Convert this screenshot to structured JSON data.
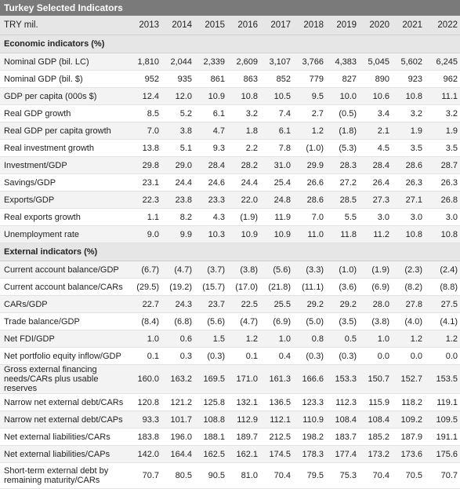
{
  "title": "Turkey Selected Indicators",
  "header": {
    "label": "TRY mil.",
    "years": [
      "2013",
      "2014",
      "2015",
      "2016",
      "2017",
      "2018",
      "2019",
      "2020",
      "2021",
      "2022"
    ]
  },
  "sections": [
    {
      "title": "Economic indicators (%)",
      "rows": [
        {
          "label": "Nominal GDP (bil. LC)",
          "values": [
            "1,810",
            "2,044",
            "2,339",
            "2,609",
            "3,107",
            "3,766",
            "4,383",
            "5,045",
            "5,602",
            "6,245"
          ]
        },
        {
          "label": "Nominal GDP (bil. $)",
          "values": [
            "952",
            "935",
            "861",
            "863",
            "852",
            "779",
            "827",
            "890",
            "923",
            "962"
          ]
        },
        {
          "label": "GDP per capita (000s $)",
          "values": [
            "12.4",
            "12.0",
            "10.9",
            "10.8",
            "10.5",
            "9.5",
            "10.0",
            "10.6",
            "10.8",
            "11.1"
          ]
        },
        {
          "label": "Real GDP growth",
          "values": [
            "8.5",
            "5.2",
            "6.1",
            "3.2",
            "7.4",
            "2.7",
            "(0.5)",
            "3.4",
            "3.2",
            "3.2"
          ]
        },
        {
          "label": "Real GDP per capita growth",
          "values": [
            "7.0",
            "3.8",
            "4.7",
            "1.8",
            "6.1",
            "1.2",
            "(1.8)",
            "2.1",
            "1.9",
            "1.9"
          ]
        },
        {
          "label": "Real investment growth",
          "values": [
            "13.8",
            "5.1",
            "9.3",
            "2.2",
            "7.8",
            "(1.0)",
            "(5.3)",
            "4.5",
            "3.5",
            "3.5"
          ]
        },
        {
          "label": "Investment/GDP",
          "values": [
            "29.8",
            "29.0",
            "28.4",
            "28.2",
            "31.0",
            "29.9",
            "28.3",
            "28.4",
            "28.6",
            "28.7"
          ]
        },
        {
          "label": "Savings/GDP",
          "values": [
            "23.1",
            "24.4",
            "24.6",
            "24.4",
            "25.4",
            "26.6",
            "27.2",
            "26.4",
            "26.3",
            "26.3"
          ]
        },
        {
          "label": "Exports/GDP",
          "values": [
            "22.3",
            "23.8",
            "23.3",
            "22.0",
            "24.8",
            "28.6",
            "28.5",
            "27.3",
            "27.1",
            "26.8"
          ]
        },
        {
          "label": "Real exports growth",
          "values": [
            "1.1",
            "8.2",
            "4.3",
            "(1.9)",
            "11.9",
            "7.0",
            "5.5",
            "3.0",
            "3.0",
            "3.0"
          ]
        },
        {
          "label": "Unemployment rate",
          "values": [
            "9.0",
            "9.9",
            "10.3",
            "10.9",
            "10.9",
            "11.0",
            "11.8",
            "11.2",
            "10.8",
            "10.8"
          ]
        }
      ]
    },
    {
      "title": "External indicators (%)",
      "rows": [
        {
          "label": "Current account balance/GDP",
          "values": [
            "(6.7)",
            "(4.7)",
            "(3.7)",
            "(3.8)",
            "(5.6)",
            "(3.3)",
            "(1.0)",
            "(1.9)",
            "(2.3)",
            "(2.4)"
          ]
        },
        {
          "label": "Current account balance/CARs",
          "values": [
            "(29.5)",
            "(19.2)",
            "(15.7)",
            "(17.0)",
            "(21.8)",
            "(11.1)",
            "(3.6)",
            "(6.9)",
            "(8.2)",
            "(8.8)"
          ]
        },
        {
          "label": "CARs/GDP",
          "values": [
            "22.7",
            "24.3",
            "23.7",
            "22.5",
            "25.5",
            "29.2",
            "29.2",
            "28.0",
            "27.8",
            "27.5"
          ]
        },
        {
          "label": "Trade balance/GDP",
          "values": [
            "(8.4)",
            "(6.8)",
            "(5.6)",
            "(4.7)",
            "(6.9)",
            "(5.0)",
            "(3.5)",
            "(3.8)",
            "(4.0)",
            "(4.1)"
          ]
        },
        {
          "label": "Net FDI/GDP",
          "values": [
            "1.0",
            "0.6",
            "1.5",
            "1.2",
            "1.0",
            "0.8",
            "0.5",
            "1.0",
            "1.2",
            "1.2"
          ]
        },
        {
          "label": "Net portfolio equity inflow/GDP",
          "values": [
            "0.1",
            "0.3",
            "(0.3)",
            "0.1",
            "0.4",
            "(0.3)",
            "(0.3)",
            "0.0",
            "0.0",
            "0.0"
          ]
        },
        {
          "label": "Gross external financing needs/CARs plus usable reserves",
          "values": [
            "160.0",
            "163.2",
            "169.5",
            "171.0",
            "161.3",
            "166.6",
            "153.3",
            "150.7",
            "152.7",
            "153.5"
          ],
          "tall": true
        },
        {
          "label": "Narrow net external debt/CARs",
          "values": [
            "120.8",
            "121.2",
            "125.8",
            "132.1",
            "136.5",
            "123.3",
            "112.3",
            "115.9",
            "118.2",
            "119.1"
          ]
        },
        {
          "label": "Narrow net external debt/CAPs",
          "values": [
            "93.3",
            "101.7",
            "108.8",
            "112.9",
            "112.1",
            "110.9",
            "108.4",
            "108.4",
            "109.2",
            "109.5"
          ]
        },
        {
          "label": "Net external liabilities/CARs",
          "values": [
            "183.8",
            "196.0",
            "188.1",
            "189.7",
            "212.5",
            "198.2",
            "183.7",
            "185.2",
            "187.9",
            "191.1"
          ]
        },
        {
          "label": "Net external liabilities/CAPs",
          "values": [
            "142.0",
            "164.4",
            "162.5",
            "162.1",
            "174.5",
            "178.3",
            "177.4",
            "173.2",
            "173.6",
            "175.6"
          ]
        },
        {
          "label": "Short-term external debt by remaining maturity/CARs",
          "values": [
            "70.7",
            "80.5",
            "90.5",
            "81.0",
            "70.4",
            "79.5",
            "75.3",
            "70.4",
            "70.5",
            "70.7"
          ],
          "tall": true
        }
      ]
    }
  ]
}
